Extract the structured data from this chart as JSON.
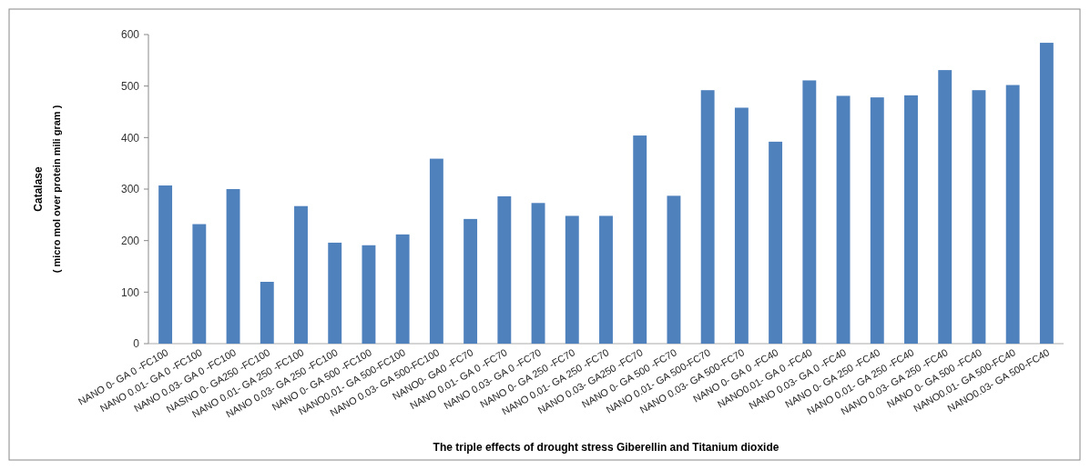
{
  "chart_data": {
    "type": "bar",
    "xlabel": "The triple effects of drought stress Giberellin and Titanium dioxide",
    "ylabel": "Catalase",
    "subtitle": "( micro mol over protein mili gram )",
    "categories": [
      "NANO 0- GA 0 -FC100",
      "NANO 0.01- GA 0 -FC100",
      "NANO 0.03- GA 0 -FC100",
      "NASNO 0- GA250 -FC100",
      "NANO 0.01- GA 250 -FC100",
      "NANO 0.03- GA 250 -FC100",
      "NANO 0- GA 500 -FC100",
      "NANO0.01- GA 500-FC100",
      "NANO 0.03- GA 500-FC100",
      "NANO0- GA0 -FC70",
      "NANO 0.01- GA 0 -FC70",
      "NANO 0.03- GA 0 -FC70",
      "NANO 0- GA 250 -FC70",
      "NANO 0.01- GA 250 -FC70",
      "NANO 0.03- GA250 -FC70",
      "NANO 0- GA 500 -FC70",
      "NANO 0.01- GA 500-FC70",
      "NANO 0.03- GA 500-FC70",
      "NANO 0- GA 0 -FC40",
      "NANO0.01- GA 0 -FC40",
      "NANO 0.03- GA 0 -FC40",
      "NANO 0- GA 250 -FC40",
      "NANO 0.01- GA 250 -FC40",
      "NANO 0.03- GA 250 -FC40",
      "NANO 0- GA 500 -FC40",
      "NANO0.01- GA 500-FC40",
      "NANO0.03- GA 500-FC40"
    ],
    "values": [
      307,
      232,
      300,
      120,
      267,
      196,
      191,
      212,
      359,
      242,
      286,
      273,
      248,
      248,
      404,
      287,
      492,
      458,
      392,
      511,
      481,
      478,
      482,
      531,
      492,
      502,
      584
    ],
    "color": "#4f81bd",
    "ylim": [
      0,
      600
    ],
    "yticks": [
      0,
      100,
      200,
      300,
      400,
      500,
      600
    ]
  }
}
